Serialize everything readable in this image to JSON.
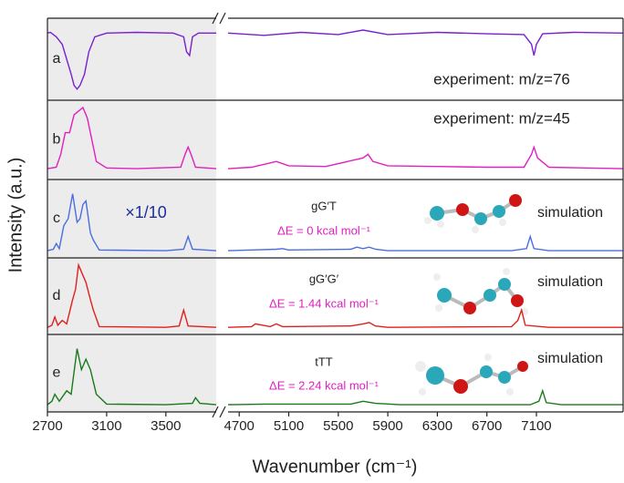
{
  "chart_data": {
    "type": "line",
    "xlabel": "Wavenumber (cm⁻¹)",
    "ylabel": "Intensity (a.u.)",
    "xlim_segments": [
      [
        2700,
        3840
      ],
      [
        4610,
        7800
      ]
    ],
    "xticks": [
      2700,
      3100,
      3500,
      4700,
      5100,
      5500,
      5900,
      6300,
      6700,
      7100
    ],
    "panels": [
      {
        "label": "a",
        "color": "#7a1fd1",
        "ylim": [
          0,
          1
        ],
        "annotations": [
          "experiment: m/z=76"
        ],
        "x": [
          2700,
          2720,
          2760,
          2800,
          2830,
          2860,
          2880,
          2900,
          2920,
          2950,
          2980,
          3020,
          3100,
          3300,
          3550,
          3620,
          3640,
          3660,
          3680,
          3720,
          3840,
          4000,
          4610,
          4900,
          5200,
          5500,
          5700,
          5900,
          6300,
          6700,
          7000,
          7060,
          7080,
          7100,
          7150,
          7400,
          7800
        ],
        "values": [
          0.85,
          0.86,
          0.8,
          0.7,
          0.5,
          0.3,
          0.15,
          0.1,
          0.15,
          0.3,
          0.6,
          0.8,
          0.85,
          0.86,
          0.85,
          0.8,
          0.6,
          0.55,
          0.8,
          0.85,
          0.85,
          null,
          0.85,
          0.82,
          0.86,
          0.83,
          0.89,
          0.83,
          0.86,
          0.84,
          0.83,
          0.7,
          0.55,
          0.7,
          0.84,
          0.86,
          0.85
        ]
      },
      {
        "label": "b",
        "color": "#e020c0",
        "ylim": [
          0,
          1
        ],
        "annotations": [
          "experiment: m/z=45"
        ],
        "x": [
          2700,
          2760,
          2790,
          2820,
          2850,
          2880,
          2910,
          2940,
          2970,
          3000,
          3030,
          3100,
          3300,
          3600,
          3630,
          3650,
          3670,
          3700,
          3840,
          4000,
          4610,
          4800,
          5000,
          5100,
          5400,
          5700,
          5740,
          5780,
          5900,
          6300,
          6700,
          7000,
          7060,
          7080,
          7110,
          7200,
          7800
        ],
        "values": [
          0.1,
          0.12,
          0.3,
          0.6,
          0.6,
          0.85,
          0.9,
          0.95,
          0.8,
          0.5,
          0.2,
          0.11,
          0.1,
          0.12,
          0.3,
          0.4,
          0.3,
          0.12,
          0.1,
          null,
          0.1,
          0.12,
          0.2,
          0.14,
          0.13,
          0.25,
          0.3,
          0.2,
          0.14,
          0.13,
          0.12,
          0.12,
          0.3,
          0.4,
          0.25,
          0.12,
          0.1
        ]
      },
      {
        "label": "c",
        "color": "#4a6ee0",
        "ylim": [
          0,
          1
        ],
        "annotations": [
          "×1/10",
          "gG′T",
          "ΔE = 0 kcal mol⁻¹",
          "simulation"
        ],
        "x": [
          2700,
          2740,
          2760,
          2780,
          2810,
          2840,
          2870,
          2900,
          2920,
          2940,
          2960,
          2990,
          3010,
          3050,
          3500,
          3620,
          3650,
          3680,
          3840,
          4000,
          4610,
          4800,
          5000,
          5050,
          5100,
          5600,
          5650,
          5700,
          5750,
          5800,
          5900,
          6900,
          7020,
          7050,
          7080,
          7200,
          7800
        ],
        "values": [
          0.05,
          0.07,
          0.15,
          0.08,
          0.4,
          0.5,
          0.85,
          0.45,
          0.5,
          0.7,
          0.75,
          0.3,
          0.2,
          0.06,
          0.05,
          0.07,
          0.25,
          0.07,
          0.05,
          null,
          0.05,
          0.06,
          0.07,
          0.08,
          0.06,
          0.07,
          0.1,
          0.08,
          0.1,
          0.07,
          0.05,
          0.05,
          0.08,
          0.25,
          0.08,
          0.05,
          0.05
        ]
      },
      {
        "label": "d",
        "color": "#e0201c",
        "ylim": [
          0,
          1
        ],
        "annotations": [
          "gG′G′",
          "ΔE = 1.44 kcal mol⁻¹",
          "simulation"
        ],
        "x": [
          2700,
          2730,
          2750,
          2770,
          2800,
          2830,
          2870,
          2890,
          2910,
          2940,
          2960,
          2990,
          3010,
          3050,
          3500,
          3590,
          3620,
          3650,
          3840,
          4000,
          4610,
          4800,
          4830,
          4950,
          5000,
          5050,
          5600,
          5700,
          5750,
          5800,
          5900,
          6900,
          6950,
          6980,
          7010,
          7200,
          7800
        ],
        "values": [
          0.05,
          0.08,
          0.2,
          0.08,
          0.15,
          0.1,
          0.45,
          0.6,
          0.95,
          0.8,
          0.7,
          0.45,
          0.3,
          0.06,
          0.05,
          0.07,
          0.3,
          0.07,
          0.05,
          null,
          0.05,
          0.06,
          0.1,
          0.06,
          0.1,
          0.06,
          0.07,
          0.1,
          0.12,
          0.07,
          0.05,
          0.06,
          0.15,
          0.3,
          0.08,
          0.05,
          0.05
        ]
      },
      {
        "label": "e",
        "color": "#1a7a1a",
        "ylim": [
          0,
          1
        ],
        "annotations": [
          "tTT",
          "ΔE = 2.24 kcal mol⁻¹",
          "simulation"
        ],
        "x": [
          2700,
          2730,
          2750,
          2780,
          2830,
          2860,
          2900,
          2930,
          2960,
          2990,
          3030,
          3100,
          3500,
          3680,
          3700,
          3730,
          3840,
          4000,
          4610,
          4900,
          5600,
          5700,
          5800,
          6000,
          7050,
          7120,
          7150,
          7180,
          7300,
          7800
        ],
        "values": [
          0.05,
          0.1,
          0.2,
          0.1,
          0.25,
          0.2,
          0.85,
          0.55,
          0.7,
          0.55,
          0.2,
          0.06,
          0.05,
          0.07,
          0.15,
          0.07,
          0.05,
          null,
          0.05,
          0.06,
          0.06,
          0.1,
          0.07,
          0.05,
          0.05,
          0.1,
          0.25,
          0.08,
          0.05,
          0.05
        ]
      }
    ]
  }
}
